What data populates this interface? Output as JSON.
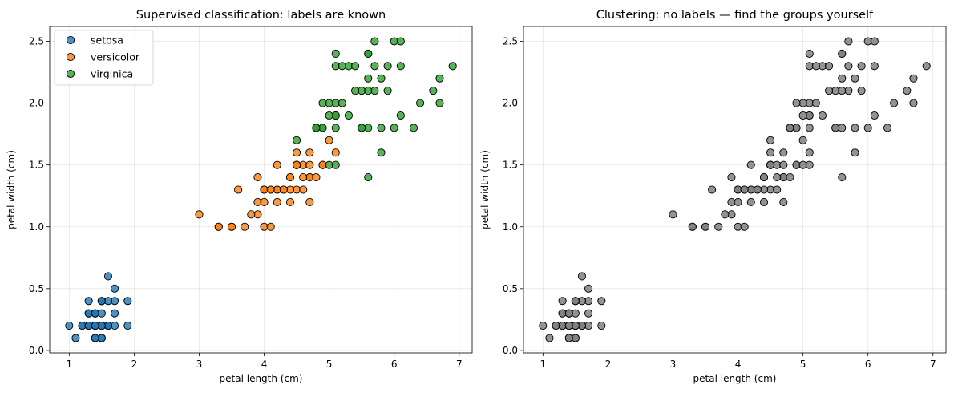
{
  "chart_data": [
    {
      "type": "scatter",
      "title": "Supervised classification: labels are known",
      "xlabel": "petal length (cm)",
      "ylabel": "petal width (cm)",
      "xlim": [
        0.7,
        7.2
      ],
      "ylim": [
        -0.02,
        2.62
      ],
      "xticks": [
        1,
        2,
        3,
        4,
        5,
        6,
        7
      ],
      "yticks": [
        0.0,
        0.5,
        1.0,
        1.5,
        2.0,
        2.5
      ],
      "grid": true,
      "legend": "upper-left",
      "series": [
        {
          "name": "setosa",
          "color": "#1f77b4",
          "points": [
            [
              1.4,
              0.2
            ],
            [
              1.4,
              0.2
            ],
            [
              1.3,
              0.2
            ],
            [
              1.5,
              0.2
            ],
            [
              1.4,
              0.2
            ],
            [
              1.7,
              0.4
            ],
            [
              1.4,
              0.3
            ],
            [
              1.5,
              0.2
            ],
            [
              1.4,
              0.2
            ],
            [
              1.5,
              0.1
            ],
            [
              1.5,
              0.2
            ],
            [
              1.6,
              0.2
            ],
            [
              1.4,
              0.1
            ],
            [
              1.1,
              0.1
            ],
            [
              1.2,
              0.2
            ],
            [
              1.5,
              0.4
            ],
            [
              1.3,
              0.4
            ],
            [
              1.4,
              0.3
            ],
            [
              1.7,
              0.3
            ],
            [
              1.5,
              0.3
            ],
            [
              1.7,
              0.2
            ],
            [
              1.5,
              0.4
            ],
            [
              1.0,
              0.2
            ],
            [
              1.7,
              0.5
            ],
            [
              1.9,
              0.2
            ],
            [
              1.6,
              0.2
            ],
            [
              1.6,
              0.4
            ],
            [
              1.5,
              0.2
            ],
            [
              1.4,
              0.2
            ],
            [
              1.6,
              0.2
            ],
            [
              1.6,
              0.2
            ],
            [
              1.5,
              0.4
            ],
            [
              1.5,
              0.1
            ],
            [
              1.4,
              0.2
            ],
            [
              1.5,
              0.2
            ],
            [
              1.2,
              0.2
            ],
            [
              1.3,
              0.2
            ],
            [
              1.4,
              0.1
            ],
            [
              1.3,
              0.2
            ],
            [
              1.5,
              0.2
            ],
            [
              1.3,
              0.3
            ],
            [
              1.3,
              0.3
            ],
            [
              1.3,
              0.2
            ],
            [
              1.6,
              0.6
            ],
            [
              1.9,
              0.4
            ],
            [
              1.4,
              0.3
            ],
            [
              1.6,
              0.2
            ],
            [
              1.4,
              0.2
            ],
            [
              1.5,
              0.2
            ],
            [
              1.4,
              0.2
            ]
          ]
        },
        {
          "name": "versicolor",
          "color": "#ff7f0e",
          "points": [
            [
              4.7,
              1.4
            ],
            [
              4.5,
              1.5
            ],
            [
              4.9,
              1.5
            ],
            [
              4.0,
              1.3
            ],
            [
              4.6,
              1.5
            ],
            [
              4.5,
              1.3
            ],
            [
              4.7,
              1.6
            ],
            [
              3.3,
              1.0
            ],
            [
              4.6,
              1.3
            ],
            [
              3.9,
              1.4
            ],
            [
              3.5,
              1.0
            ],
            [
              4.2,
              1.5
            ],
            [
              4.0,
              1.0
            ],
            [
              4.7,
              1.4
            ],
            [
              3.6,
              1.3
            ],
            [
              4.4,
              1.4
            ],
            [
              4.5,
              1.5
            ],
            [
              4.1,
              1.0
            ],
            [
              4.5,
              1.5
            ],
            [
              3.9,
              1.1
            ],
            [
              4.8,
              1.8
            ],
            [
              4.0,
              1.3
            ],
            [
              4.9,
              1.5
            ],
            [
              4.7,
              1.2
            ],
            [
              4.3,
              1.3
            ],
            [
              4.4,
              1.4
            ],
            [
              4.8,
              1.4
            ],
            [
              5.0,
              1.7
            ],
            [
              4.5,
              1.5
            ],
            [
              3.5,
              1.0
            ],
            [
              3.8,
              1.1
            ],
            [
              3.7,
              1.0
            ],
            [
              3.9,
              1.2
            ],
            [
              5.1,
              1.6
            ],
            [
              4.5,
              1.5
            ],
            [
              4.5,
              1.6
            ],
            [
              4.7,
              1.5
            ],
            [
              4.4,
              1.3
            ],
            [
              4.1,
              1.3
            ],
            [
              4.0,
              1.3
            ],
            [
              4.4,
              1.2
            ],
            [
              4.6,
              1.4
            ],
            [
              4.0,
              1.2
            ],
            [
              3.3,
              1.0
            ],
            [
              4.2,
              1.3
            ],
            [
              4.2,
              1.2
            ],
            [
              4.2,
              1.3
            ],
            [
              4.3,
              1.3
            ],
            [
              3.0,
              1.1
            ],
            [
              4.1,
              1.3
            ]
          ]
        },
        {
          "name": "virginica",
          "color": "#2ca02c",
          "points": [
            [
              6.0,
              2.5
            ],
            [
              5.1,
              1.9
            ],
            [
              5.9,
              2.1
            ],
            [
              5.6,
              1.8
            ],
            [
              5.8,
              2.2
            ],
            [
              6.6,
              2.1
            ],
            [
              4.5,
              1.7
            ],
            [
              6.3,
              1.8
            ],
            [
              5.8,
              1.8
            ],
            [
              6.1,
              2.5
            ],
            [
              5.1,
              2.0
            ],
            [
              5.3,
              1.9
            ],
            [
              5.5,
              2.1
            ],
            [
              5.0,
              2.0
            ],
            [
              5.1,
              2.4
            ],
            [
              5.3,
              2.3
            ],
            [
              5.5,
              1.8
            ],
            [
              6.7,
              2.2
            ],
            [
              6.9,
              2.3
            ],
            [
              5.0,
              1.5
            ],
            [
              5.7,
              2.3
            ],
            [
              4.9,
              2.0
            ],
            [
              6.7,
              2.0
            ],
            [
              4.9,
              1.8
            ],
            [
              5.7,
              2.1
            ],
            [
              6.0,
              1.8
            ],
            [
              4.8,
              1.8
            ],
            [
              4.9,
              1.8
            ],
            [
              5.6,
              2.1
            ],
            [
              5.8,
              1.6
            ],
            [
              6.1,
              1.9
            ],
            [
              6.4,
              2.0
            ],
            [
              5.6,
              2.2
            ],
            [
              5.1,
              1.5
            ],
            [
              5.6,
              1.4
            ],
            [
              6.1,
              2.3
            ],
            [
              5.6,
              2.4
            ],
            [
              5.5,
              1.8
            ],
            [
              4.8,
              1.8
            ],
            [
              5.4,
              2.1
            ],
            [
              5.6,
              2.4
            ],
            [
              5.1,
              2.3
            ],
            [
              5.1,
              1.9
            ],
            [
              5.9,
              2.3
            ],
            [
              5.7,
              2.5
            ],
            [
              5.2,
              2.3
            ],
            [
              5.0,
              1.9
            ],
            [
              5.2,
              2.0
            ],
            [
              5.4,
              2.3
            ],
            [
              5.1,
              1.8
            ]
          ]
        }
      ]
    },
    {
      "type": "scatter",
      "title": "Clustering: no labels — find the groups yourself",
      "xlabel": "petal length (cm)",
      "ylabel": "petal width (cm)",
      "xlim": [
        0.7,
        7.2
      ],
      "ylim": [
        -0.02,
        2.62
      ],
      "xticks": [
        1,
        2,
        3,
        4,
        5,
        6,
        7
      ],
      "yticks": [
        0.0,
        0.5,
        1.0,
        1.5,
        2.0,
        2.5
      ],
      "grid": true,
      "legend": "none",
      "series": [
        {
          "color": "#808080",
          "points": "all 150 points from the three series of the first chart, drawn unlabeled"
        }
      ]
    }
  ]
}
